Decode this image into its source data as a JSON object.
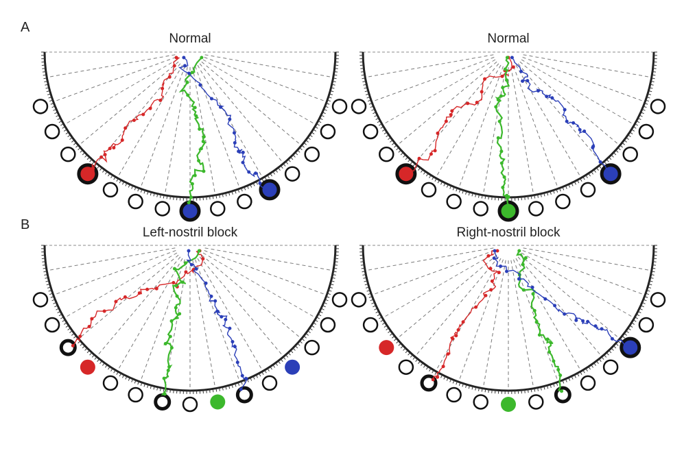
{
  "panels": [
    {
      "label": "A",
      "titles": [
        "Normal",
        "Normal"
      ]
    },
    {
      "label": "B",
      "titles": [
        "Left-nostril block",
        "Right-nostril block"
      ]
    }
  ]
}
